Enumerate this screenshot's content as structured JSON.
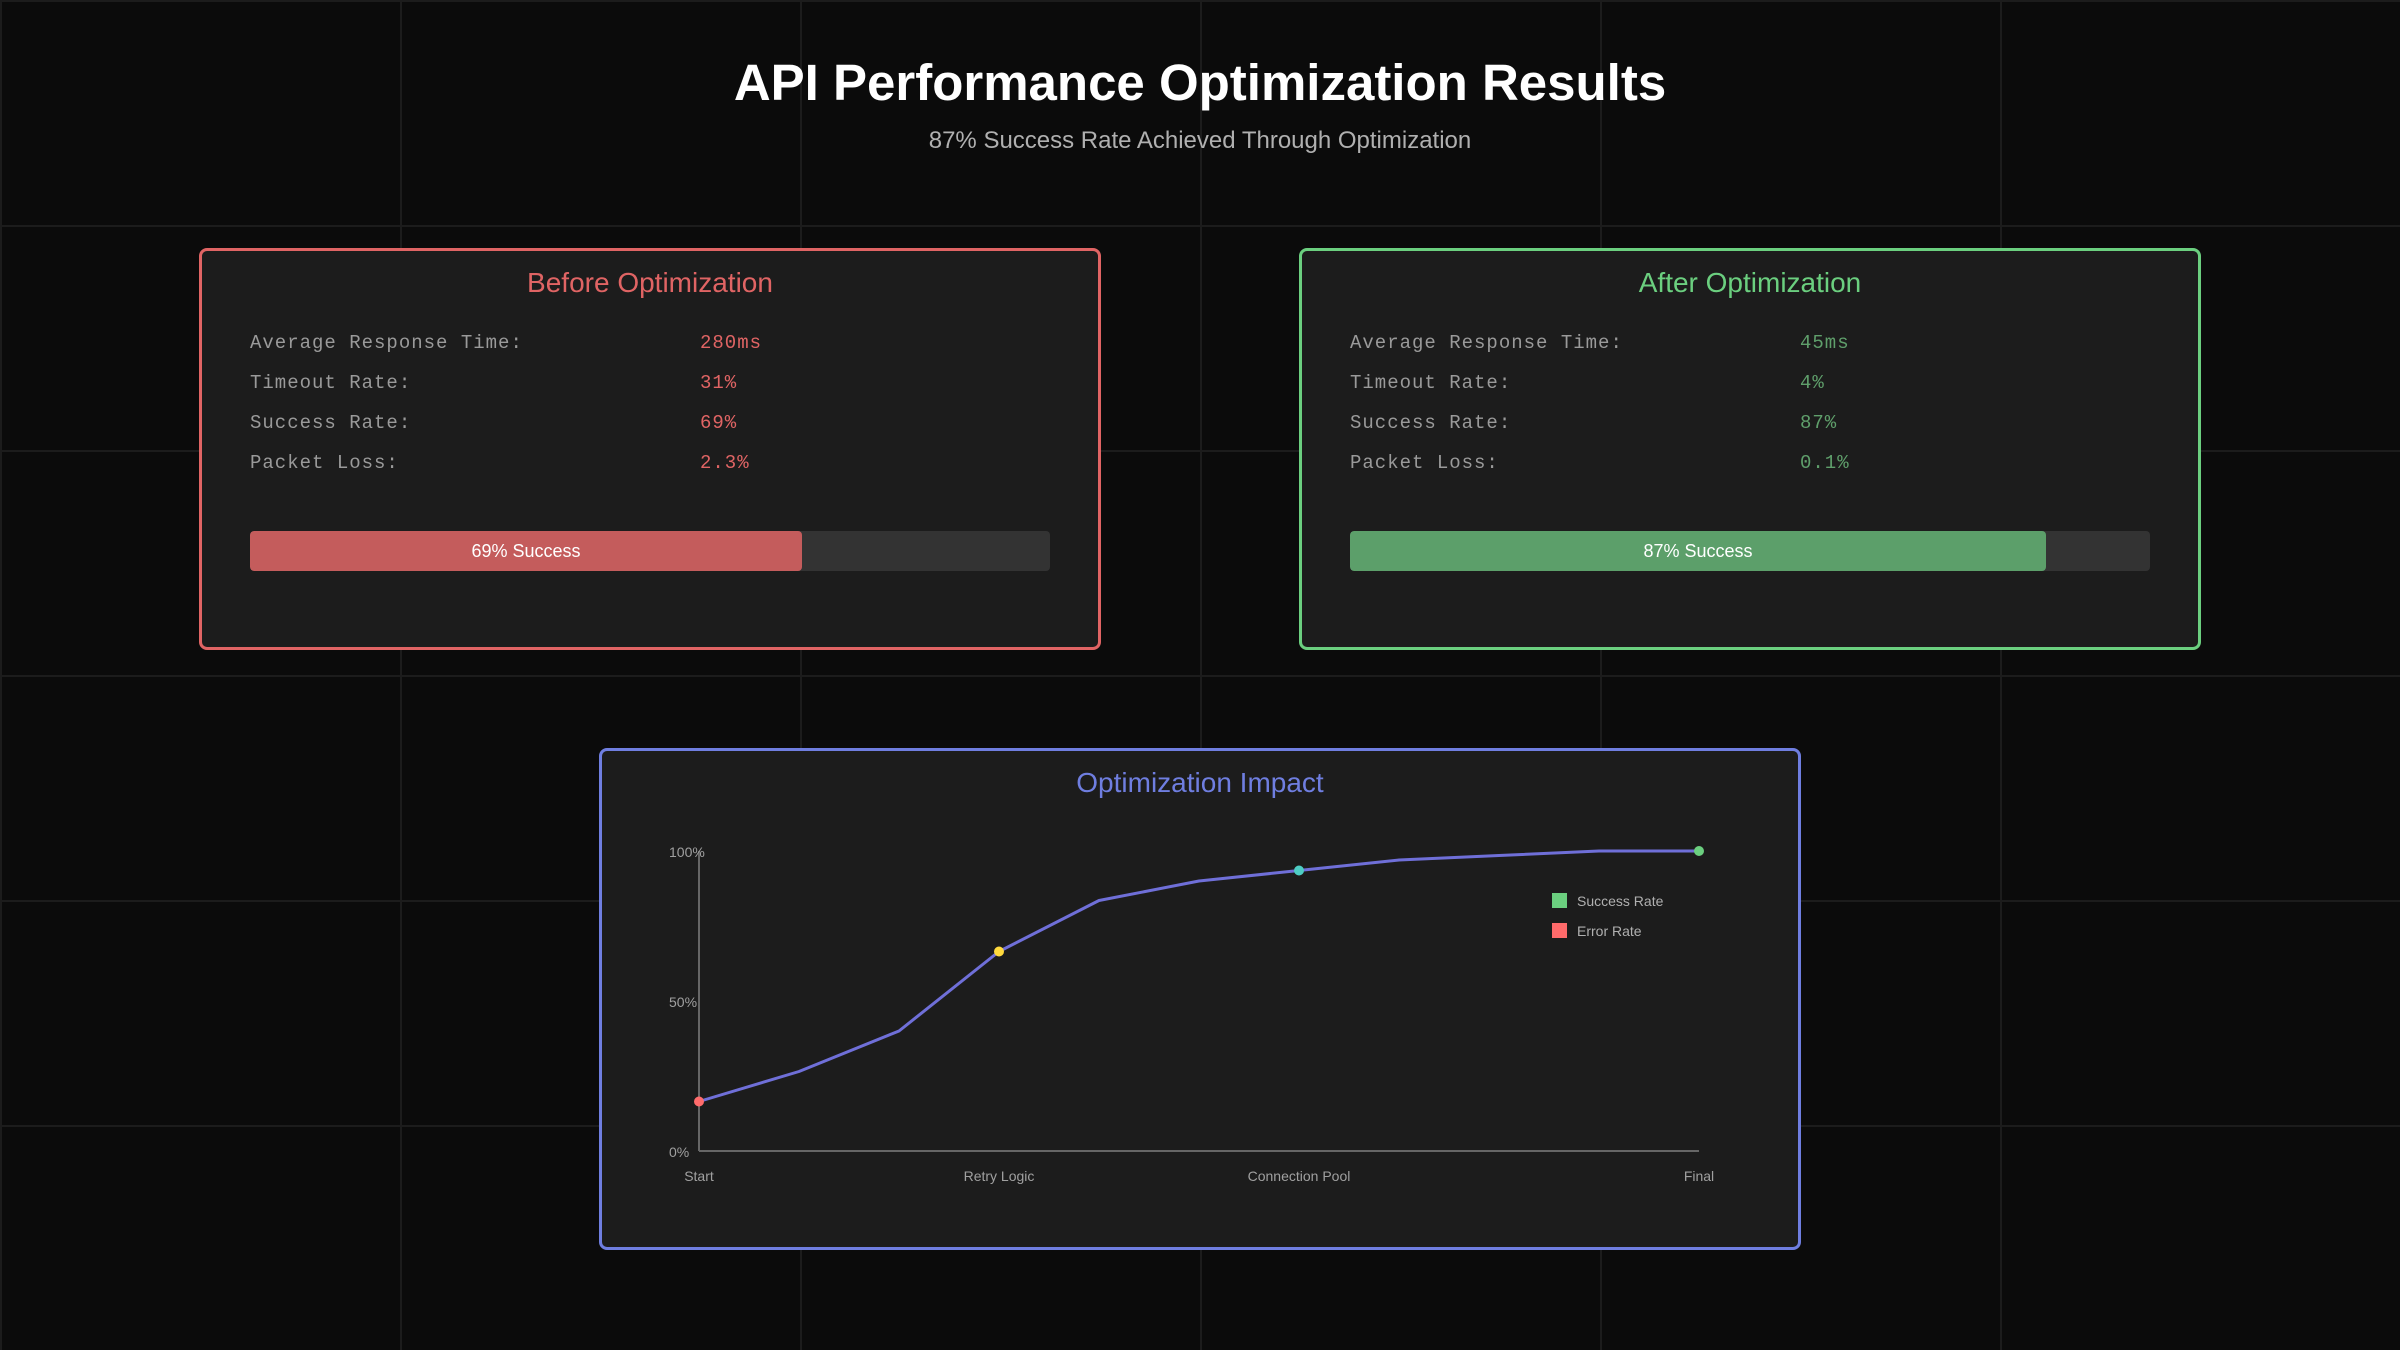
{
  "header": {
    "title": "API Performance Optimization Results",
    "subtitle": "87% Success Rate Achieved Through Optimization"
  },
  "before": {
    "title": "Before Optimization",
    "color": "#e06464",
    "fill_color": "#c45c5c",
    "metrics": [
      {
        "label": "Average Response Time:",
        "value": "280ms"
      },
      {
        "label": "Timeout Rate:",
        "value": "31%"
      },
      {
        "label": "Success Rate:",
        "value": "69%"
      },
      {
        "label": "Packet Loss:",
        "value": "2.3%"
      }
    ],
    "progress": {
      "percent": 69,
      "label": "69% Success"
    }
  },
  "after": {
    "title": "After Optimization",
    "color": "#6bcf7f",
    "value_color": "#5f9f6b",
    "fill_color": "#5c9f6a",
    "metrics": [
      {
        "label": "Average Response Time:",
        "value": "45ms"
      },
      {
        "label": "Timeout Rate:",
        "value": "4%"
      },
      {
        "label": "Success Rate:",
        "value": "87%"
      },
      {
        "label": "Packet Loss:",
        "value": "0.1%"
      }
    ],
    "progress": {
      "percent": 87,
      "label": "87% Success"
    }
  },
  "chart_panel": {
    "title": "Optimization Impact",
    "color": "#6f7ee0"
  },
  "chart_data": {
    "type": "line",
    "x_ticks": [
      "Start",
      "Retry Logic",
      "Connection Pool",
      "Final"
    ],
    "y_ticks": [
      "0%",
      "50%",
      "100%"
    ],
    "ylim": [
      0,
      100
    ],
    "grid": false,
    "legend_position": "top-right",
    "legend": [
      {
        "label": "Success Rate",
        "color": "#6bcf7f"
      },
      {
        "label": "Error Rate",
        "color": "#ff6b6b"
      }
    ],
    "line_color": "#6f6fd8",
    "series": [
      {
        "values": [
          16.5,
          26.5,
          40,
          66.5,
          83.5,
          90,
          93.5,
          97,
          98.5,
          100,
          100
        ]
      }
    ],
    "markers": [
      {
        "index": 0,
        "color": "#ff6b6b"
      },
      {
        "index": 3,
        "color": "#ffd93d"
      },
      {
        "index": 6,
        "color": "#4ecdc4"
      },
      {
        "index": 10,
        "color": "#6bcf7f"
      }
    ]
  }
}
